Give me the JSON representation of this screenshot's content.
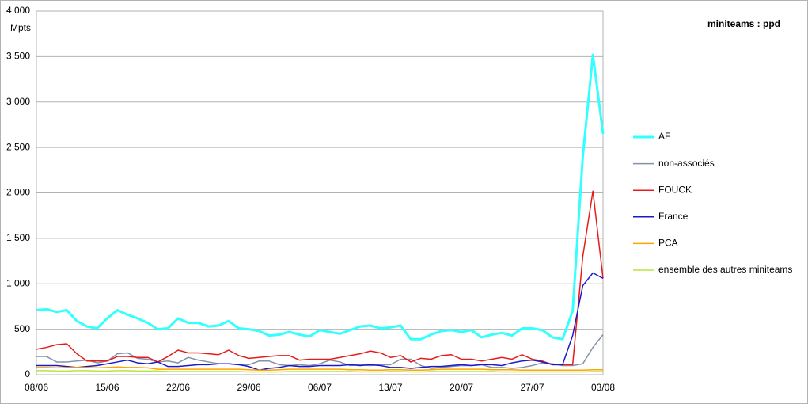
{
  "chart_data": {
    "type": "line",
    "title": "miniteams : ppd",
    "y_label": "Mpts",
    "categories": [
      "08/06",
      null,
      null,
      null,
      null,
      null,
      null,
      "15/06",
      null,
      null,
      null,
      null,
      null,
      null,
      "22/06",
      null,
      null,
      null,
      null,
      null,
      null,
      "29/06",
      null,
      null,
      null,
      null,
      null,
      null,
      "06/07",
      null,
      null,
      null,
      null,
      null,
      null,
      "13/07",
      null,
      null,
      null,
      null,
      null,
      null,
      "20/07",
      null,
      null,
      null,
      null,
      null,
      null,
      "27/07",
      null,
      null,
      null,
      null,
      null,
      null,
      "03/08"
    ],
    "ylim": [
      0,
      4000
    ],
    "yticks": [
      0,
      500,
      {
        "value": 1000,
        "label": "1 000"
      },
      {
        "value": 1500,
        "label": "1 500"
      },
      {
        "value": 2000,
        "label": "2 000"
      },
      {
        "value": 2500,
        "label": "2 500"
      },
      {
        "value": 3000,
        "label": "3 000"
      },
      {
        "value": 3500,
        "label": "3 500"
      },
      {
        "value": 4000,
        "label": "4 000"
      }
    ],
    "grid": true,
    "legend": "right",
    "series": [
      {
        "name": "AF",
        "color": "#33ffff",
        "width": 3,
        "values": [
          710,
          720,
          690,
          710,
          590,
          530,
          510,
          620,
          710,
          660,
          620,
          570,
          500,
          510,
          620,
          570,
          570,
          530,
          540,
          590,
          510,
          500,
          480,
          430,
          440,
          470,
          440,
          420,
          490,
          470,
          450,
          490,
          530,
          540,
          510,
          520,
          540,
          390,
          390,
          440,
          480,
          490,
          470,
          490,
          410,
          440,
          460,
          430,
          510,
          510,
          490,
          410,
          390,
          700,
          2400,
          3520,
          2650
        ]
      },
      {
        "name": "non-associés",
        "color": "#8491a8",
        "width": 1.5,
        "values": [
          200,
          200,
          140,
          140,
          150,
          160,
          130,
          150,
          230,
          240,
          180,
          170,
          140,
          150,
          130,
          190,
          160,
          140,
          120,
          120,
          110,
          110,
          150,
          150,
          110,
          100,
          110,
          100,
          120,
          160,
          140,
          100,
          110,
          100,
          110,
          110,
          170,
          170,
          100,
          70,
          80,
          90,
          100,
          100,
          110,
          80,
          80,
          70,
          80,
          100,
          130,
          120,
          100,
          100,
          120,
          300,
          440
        ]
      },
      {
        "name": "FOUCK",
        "color": "#e81b1b",
        "width": 1.5,
        "values": [
          280,
          300,
          330,
          340,
          230,
          150,
          150,
          150,
          200,
          200,
          190,
          190,
          140,
          200,
          270,
          240,
          240,
          230,
          220,
          270,
          210,
          180,
          190,
          200,
          210,
          210,
          160,
          170,
          170,
          170,
          190,
          210,
          230,
          260,
          240,
          190,
          210,
          140,
          180,
          170,
          210,
          220,
          170,
          170,
          150,
          170,
          190,
          170,
          220,
          170,
          150,
          110,
          110,
          110,
          1300,
          2020,
          1060
        ]
      },
      {
        "name": "France",
        "color": "#1a1acc",
        "width": 1.5,
        "values": [
          100,
          100,
          100,
          90,
          80,
          90,
          100,
          120,
          140,
          160,
          130,
          120,
          140,
          90,
          90,
          100,
          110,
          110,
          120,
          120,
          110,
          90,
          50,
          70,
          80,
          100,
          90,
          90,
          100,
          100,
          100,
          110,
          100,
          110,
          100,
          80,
          80,
          70,
          80,
          90,
          90,
          100,
          110,
          100,
          110,
          110,
          100,
          130,
          150,
          160,
          140,
          110,
          110,
          430,
          980,
          1120,
          1060
        ]
      },
      {
        "name": "PCA",
        "color": "#ffa500",
        "width": 1.5,
        "values": [
          80,
          80,
          75,
          80,
          80,
          80,
          75,
          80,
          85,
          80,
          80,
          75,
          60,
          60,
          60,
          60,
          60,
          60,
          60,
          60,
          60,
          55,
          50,
          50,
          55,
          60,
          60,
          60,
          60,
          60,
          60,
          55,
          55,
          50,
          50,
          55,
          55,
          50,
          50,
          55,
          60,
          60,
          60,
          60,
          60,
          55,
          55,
          55,
          50,
          50,
          50,
          50,
          50,
          50,
          50,
          55,
          55
        ]
      },
      {
        "name": "ensemble des autres miniteams",
        "color": "#b8e63c",
        "width": 1.5,
        "values": [
          45,
          45,
          40,
          40,
          45,
          45,
          40,
          40,
          45,
          45,
          40,
          40,
          40,
          35,
          35,
          35,
          35,
          35,
          35,
          35,
          35,
          30,
          30,
          30,
          30,
          35,
          35,
          35,
          35,
          35,
          35,
          35,
          30,
          30,
          30,
          35,
          35,
          30,
          30,
          35,
          35,
          35,
          35,
          35,
          35,
          35,
          30,
          30,
          30,
          30,
          30,
          30,
          30,
          30,
          30,
          35,
          35
        ]
      }
    ]
  }
}
